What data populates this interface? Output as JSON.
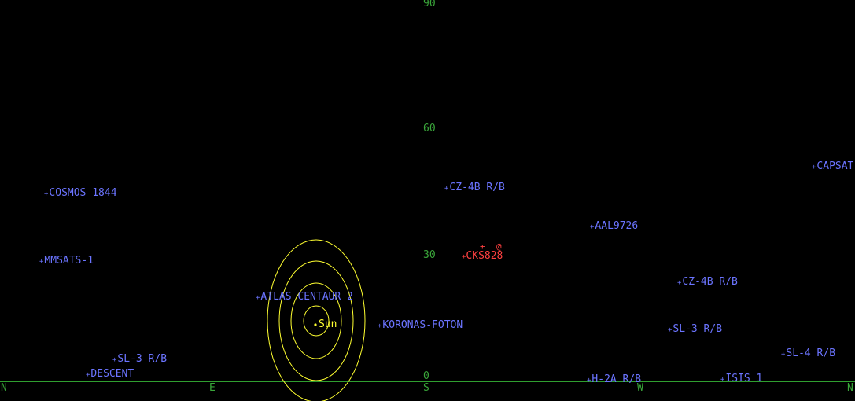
{
  "colors": {
    "background": "#000000",
    "grid_green": "#3aa63a",
    "satellite_blue": "#6b74ff",
    "highlight_red": "#ff4040",
    "sun_yellow": "#ffff30"
  },
  "elevation_labels": [
    "90",
    "60",
    "30",
    "0"
  ],
  "direction_labels": [
    "N",
    "E",
    "S",
    "W",
    "N"
  ],
  "sun": {
    "label": "Sun",
    "ring_count": 4
  },
  "highlight": {
    "name": "CKS828",
    "marker": "@",
    "tick": "+"
  },
  "satellites": [
    "COSMOS 1844",
    "MMSATS-1",
    "ATLAS CENTAUR 2",
    "SL-3 R/B",
    "DESCENT",
    "KORONAS-FOTON",
    "CZ-4B R/B",
    "AAL9726",
    "CZ-4B R/B",
    "SL-3 R/B",
    "H-2A R/B",
    "ISIS 1",
    "SL-4 R/B",
    "CAPSAT"
  ]
}
